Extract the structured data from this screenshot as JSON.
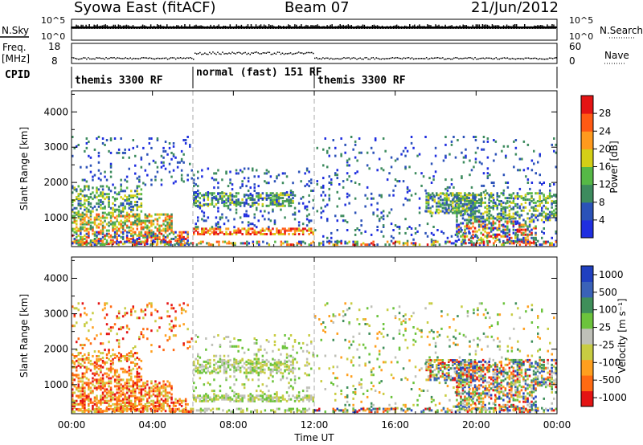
{
  "header": {
    "title": "Syowa East (fitACF)",
    "beam": "Beam 07",
    "date": "21/Jun/2012"
  },
  "nsky_panel": {
    "left_label": "N.Sky",
    "right_label": "N.Search",
    "ticks": [
      "10^5",
      "10^0"
    ]
  },
  "freq_panel": {
    "left_label_1": "Freq.",
    "left_label_2": "[MHz]",
    "right_label": "Nave",
    "left_ticks": [
      "18",
      "8"
    ],
    "right_ticks": [
      "60",
      "0"
    ]
  },
  "cpid": {
    "label": "CPID",
    "segments": [
      {
        "name": "themis 3300 RF",
        "start_hr": 0,
        "end_hr": 6
      },
      {
        "name": "normal (fast) 151 RF",
        "start_hr": 6,
        "end_hr": 12
      },
      {
        "name": "themis 3300 RF",
        "start_hr": 12,
        "end_hr": 24
      }
    ]
  },
  "chart_data": [
    {
      "type": "heatmap",
      "name": "power",
      "ylabel": "Slant Range [km]",
      "ylim": [
        180,
        4600
      ],
      "yticks": [
        "1000",
        "2000",
        "3000",
        "4000"
      ],
      "colorbar_label": "Power [dB]",
      "colorbar_ticks": [
        "4",
        "8",
        "12",
        "16",
        "20",
        "24",
        "28"
      ],
      "colorbar_range": [
        0,
        32
      ],
      "colors": [
        "#1f2ee0",
        "#2b52b8",
        "#3d8b5e",
        "#56b846",
        "#d4cf16",
        "#ff9a1e",
        "#ff5a14",
        "#e41414"
      ]
    },
    {
      "type": "heatmap",
      "name": "velocity",
      "ylabel": "Slant Range [km]",
      "ylim": [
        180,
        4600
      ],
      "yticks": [
        "1000",
        "2000",
        "3000",
        "4000"
      ],
      "colorbar_label": "Velocity [m s⁻¹]",
      "colorbar_ticks": [
        "1000",
        "500",
        "100",
        "25",
        "-25",
        "-100",
        "-500",
        "-1000"
      ],
      "colors": [
        "#2040c0",
        "#3a62b8",
        "#3f8f5a",
        "#6cc33c",
        "#bfc0b8",
        "#c8cc42",
        "#ff9f1e",
        "#ff6a12",
        "#e41414"
      ]
    }
  ],
  "time_axis": {
    "label": "Time UT",
    "ticks": [
      "00:00",
      "04:00",
      "08:00",
      "12:00",
      "16:00",
      "20:00",
      "00:00"
    ],
    "range_hr": [
      0,
      24
    ]
  }
}
